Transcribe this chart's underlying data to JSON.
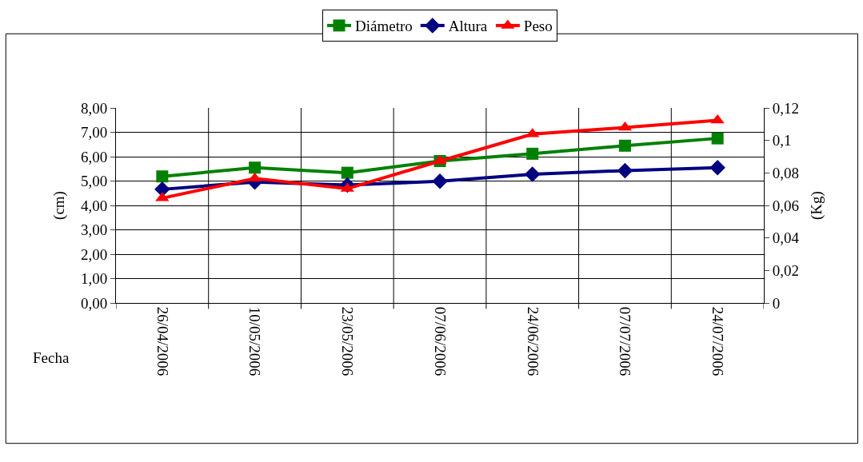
{
  "chart_data": {
    "type": "line",
    "xlabel": "Fecha",
    "ylabel": "(cm)",
    "y2label": "(Kg)",
    "categories": [
      "26/04/2006",
      "10/05/2006",
      "23/05/2006",
      "07/06/2006",
      "24/06/2006",
      "07/07/2006",
      "24/07/2006"
    ],
    "series": [
      {
        "name": "Diámetro",
        "color": "#008000",
        "marker": "square",
        "values": [
          5.19,
          5.55,
          5.34,
          5.82,
          6.12,
          6.45,
          6.75
        ]
      },
      {
        "name": "Altura",
        "color": "#000080",
        "marker": "diamond",
        "values": [
          4.66,
          4.96,
          4.84,
          4.99,
          5.28,
          5.43,
          5.55
        ]
      },
      {
        "name": "Peso",
        "color": "#ff0000",
        "marker": "triangle",
        "axis": "y2",
        "values": [
          0.0645,
          0.0766,
          0.0703,
          0.0873,
          0.1039,
          0.1079,
          0.1124
        ]
      }
    ],
    "ylim": [
      0,
      8
    ],
    "yticks": [
      {
        "value": 0,
        "label": "0,00"
      },
      {
        "value": 1,
        "label": "1,00"
      },
      {
        "value": 2,
        "label": "2,00"
      },
      {
        "value": 3,
        "label": "3,00"
      },
      {
        "value": 4,
        "label": "4,00"
      },
      {
        "value": 5,
        "label": "5,00"
      },
      {
        "value": 6,
        "label": "6,00"
      },
      {
        "value": 7,
        "label": "7,00"
      },
      {
        "value": 8,
        "label": "8,00"
      }
    ],
    "y2lim": [
      0,
      0.12
    ],
    "y2ticks": [
      0,
      {
        "value": 0.02,
        "label": "0,02"
      },
      {
        "value": 0.04,
        "label": "0,04"
      },
      {
        "value": 0.06,
        "label": "0,06"
      },
      {
        "value": 0.08,
        "label": "0,08"
      },
      {
        "value": 0.1,
        "label": "0,1"
      },
      {
        "value": 0.12,
        "label": "0,12"
      }
    ],
    "grid": true,
    "legend": "top",
    "line_style": "solid"
  }
}
